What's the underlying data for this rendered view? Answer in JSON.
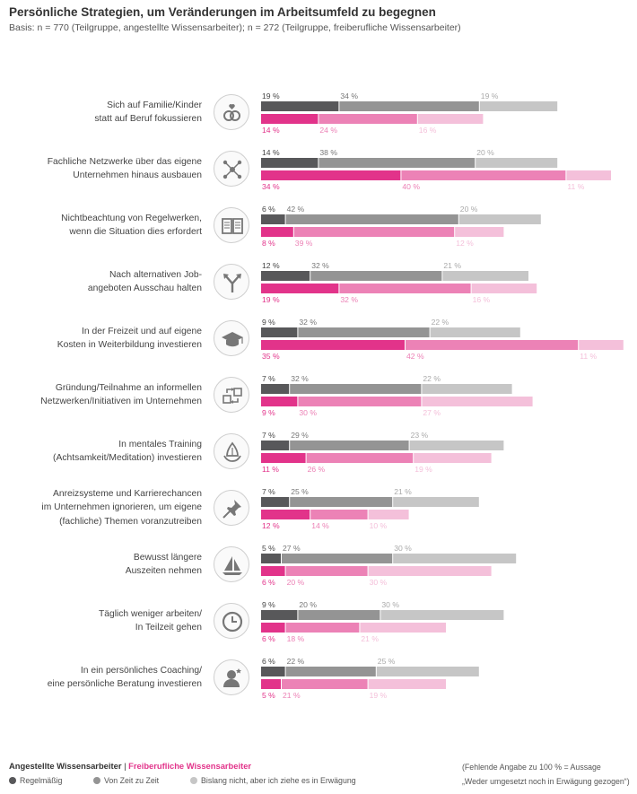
{
  "header": {
    "title": "Persönliche Strategien, um Veränderungen im Arbeitsumfeld zu begegnen",
    "subtitle": "Basis: n = 770 (Teilgruppe, angestellte Wissensarbeiter); n = 272 (Teilgruppe, freiberufliche Wissensarbeiter)"
  },
  "colors": {
    "angestellt": [
      "#58585a",
      "#949494",
      "#c6c6c6"
    ],
    "frei": [
      "#e2338a",
      "#ec82b6",
      "#f4c0da"
    ]
  },
  "chart_data": {
    "type": "bar",
    "orientation": "horizontal",
    "stacked": true,
    "series_names": [
      "Regelmäßig",
      "Von Zeit zu Zeit",
      "Bislang nicht, aber ich ziehe es in Erwägung"
    ],
    "groups": [
      "Angestellte Wissensarbeiter",
      "Freiberufliche Wissensarbeiter"
    ],
    "categories": [
      {
        "label": [
          "Sich auf Familie/Kinder",
          "statt auf Beruf fokussieren"
        ],
        "icon": "heart-rings-icon",
        "angestellt": [
          19,
          34,
          19
        ],
        "frei": [
          14,
          24,
          16
        ]
      },
      {
        "label": [
          "Fachliche Netzwerke über das eigene",
          "Unternehmen hinaus ausbauen"
        ],
        "icon": "network-icon",
        "angestellt": [
          14,
          38,
          20
        ],
        "frei": [
          34,
          40,
          11
        ]
      },
      {
        "label": [
          "Nichtbeachtung von Regelwerken,",
          "wenn die Situation dies erfordert"
        ],
        "icon": "book-icon",
        "angestellt": [
          6,
          42,
          20
        ],
        "frei": [
          8,
          39,
          12
        ]
      },
      {
        "label": [
          "Nach alternativen Job-",
          "angeboten Ausschau halten"
        ],
        "icon": "fork-arrow-icon",
        "angestellt": [
          12,
          32,
          21
        ],
        "frei": [
          19,
          32,
          16
        ]
      },
      {
        "label": [
          "In der Freizeit und auf eigene",
          "Kosten in Weiterbildung investieren"
        ],
        "icon": "graduation-cap-icon",
        "angestellt": [
          9,
          32,
          22
        ],
        "frei": [
          35,
          42,
          11
        ]
      },
      {
        "label": [
          "Gründung/Teilnahme an informellen",
          "Netzwerken/Initiativen im Unternehmen"
        ],
        "icon": "exchange-arrows-icon",
        "angestellt": [
          7,
          32,
          22
        ],
        "frei": [
          9,
          30,
          27
        ]
      },
      {
        "label": [
          "In mentales Training",
          "(Achtsamkeit/Meditation) investieren"
        ],
        "icon": "lotus-hands-icon",
        "angestellt": [
          7,
          29,
          23
        ],
        "frei": [
          11,
          26,
          19
        ]
      },
      {
        "label": [
          "Anreizsysteme und Karrierechancen",
          "im Unternehmen ignorieren, um eigene",
          "(fachliche) Themen voranzutreiben"
        ],
        "icon": "pushpin-icon",
        "angestellt": [
          7,
          25,
          21
        ],
        "frei": [
          12,
          14,
          10
        ]
      },
      {
        "label": [
          "Bewusst längere",
          "Auszeiten nehmen"
        ],
        "icon": "sailboat-icon",
        "angestellt": [
          5,
          27,
          30
        ],
        "frei": [
          6,
          20,
          30
        ]
      },
      {
        "label": [
          "Täglich weniger arbeiten/",
          "In Teilzeit gehen"
        ],
        "icon": "clock-icon",
        "angestellt": [
          9,
          20,
          30
        ],
        "frei": [
          6,
          18,
          21
        ]
      },
      {
        "label": [
          "In ein persönliches Coaching/",
          "eine persönliche Beratung investieren"
        ],
        "icon": "coaching-person-icon",
        "angestellt": [
          6,
          22,
          25
        ],
        "frei": [
          5,
          21,
          19
        ]
      }
    ],
    "value_suffix": "%",
    "xlim": [
      0,
      100
    ]
  },
  "footer": {
    "group_a": "Angestellte Wissensarbeiter",
    "separator": "|",
    "group_b": "Freiberufliche Wissensarbeiter",
    "legend": [
      "Regelmäßig",
      "Von Zeit zu Zeit",
      "Bislang nicht, aber ich ziehe es in Erwägung"
    ],
    "note_line1": "(Fehlende Angabe zu 100 % = Aussage",
    "note_line2": "„Weder umgesetzt noch in Erwägung gezogen“)"
  }
}
